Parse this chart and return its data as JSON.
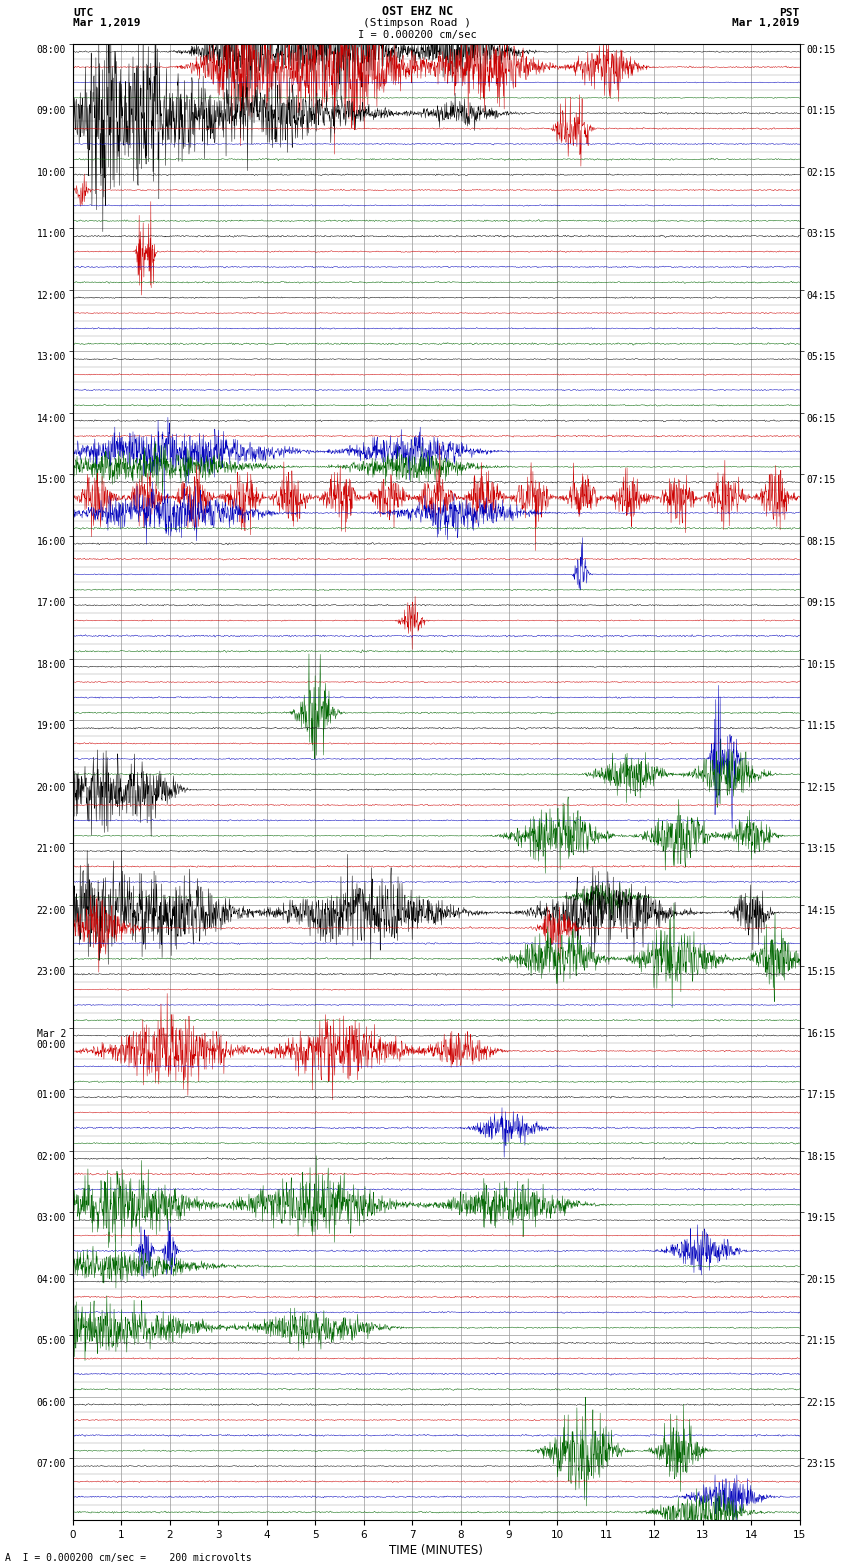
{
  "title_line1": "OST EHZ NC",
  "title_line2": "(Stimpson Road )",
  "title_line3": "I = 0.000200 cm/sec",
  "utc_label": "UTC",
  "utc_date": "Mar 1,2019",
  "pst_label": "PST",
  "pst_date": "Mar 1,2019",
  "xlabel": "TIME (MINUTES)",
  "bottom_label": "A  I = 0.000200 cm/sec =    200 microvolts",
  "xlim": [
    0,
    15
  ],
  "bg_color": "#ffffff",
  "trace_colors": [
    "#000000",
    "#cc0000",
    "#0000bb",
    "#006600"
  ],
  "grid_color": "#999999",
  "utc_hour_labels": [
    "08:00",
    "09:00",
    "10:00",
    "11:00",
    "12:00",
    "13:00",
    "14:00",
    "15:00",
    "16:00",
    "17:00",
    "18:00",
    "19:00",
    "20:00",
    "21:00",
    "22:00",
    "23:00",
    "Mar 2\n00:00",
    "01:00",
    "02:00",
    "03:00",
    "04:00",
    "05:00",
    "06:00",
    "07:00"
  ],
  "pst_hour_labels": [
    "00:15",
    "01:15",
    "02:15",
    "03:15",
    "04:15",
    "05:15",
    "06:15",
    "07:15",
    "08:15",
    "09:15",
    "10:15",
    "11:15",
    "12:15",
    "13:15",
    "14:15",
    "15:15",
    "16:15",
    "17:15",
    "18:15",
    "19:15",
    "20:15",
    "21:15",
    "22:15",
    "23:15"
  ],
  "n_hours": 24,
  "traces_per_hour": 4,
  "noise_seed": 42
}
